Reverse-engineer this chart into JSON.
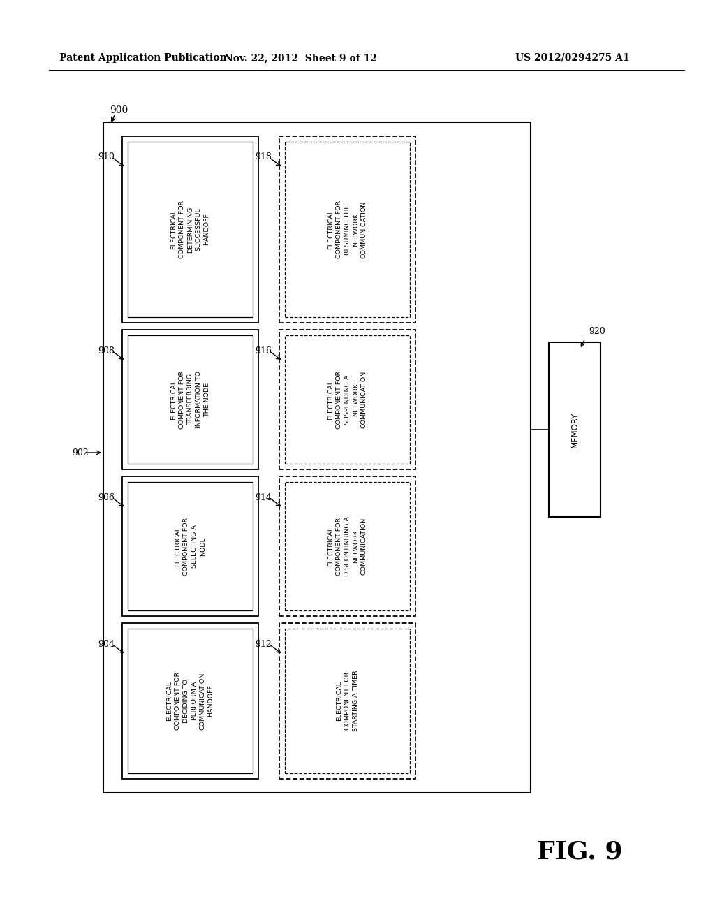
{
  "bg_color": "#ffffff",
  "header_left": "Patent Application Publication",
  "header_mid": "Nov. 22, 2012  Sheet 9 of 12",
  "header_right": "US 2012/0294275 A1",
  "fig_label": "FIG. 9",
  "left_boxes": [
    {
      "label": "910",
      "text": "ELECTRICAL\nCOMPONENT FOR\nDETERMINING\nSUCCESSFUL\nHANDOFF",
      "col": 0,
      "row": 0,
      "dashed": false
    },
    {
      "label": "908",
      "text": "ELECTRICAL\nCOMPONENT FOR\nTRANSFERRING\nINFORMATION TO\nTHE NODE",
      "col": 0,
      "row": 1,
      "dashed": false
    },
    {
      "label": "906",
      "text": "ELECTRICAL\nCOMPONENT FOR\nSELECTING A\nNODE",
      "col": 0,
      "row": 2,
      "dashed": false
    },
    {
      "label": "904",
      "text": "ELECTRICAL\nCOMPONENT FOR\nDECIDING TO\nPERFORM A\nCOMMUNICATION\nHANDOFF",
      "col": 0,
      "row": 3,
      "dashed": false
    }
  ],
  "right_boxes": [
    {
      "label": "918",
      "text": "ELECTRICAL\nCOMPONENT FOR\nRESUMING THE\nNETWORK\nCOMMUNICATION",
      "col": 1,
      "row": 0,
      "dashed": true
    },
    {
      "label": "916",
      "text": "ELECTRICAL\nCOMPONENT FOR\nSUSPENDING A\nNETWORK\nCOMMUNICATION",
      "col": 1,
      "row": 1,
      "dashed": true
    },
    {
      "label": "914",
      "text": "ELECTRICAL\nCOMPONENT FOR\nDISCONTINUING A\nNETWORK\nCOMMUNICATION",
      "col": 1,
      "row": 2,
      "dashed": true
    },
    {
      "label": "912",
      "text": "ELECTRICAL\nCOMPONENT FOR\nSTARTING A TIMER",
      "col": 1,
      "row": 3,
      "dashed": true
    }
  ]
}
